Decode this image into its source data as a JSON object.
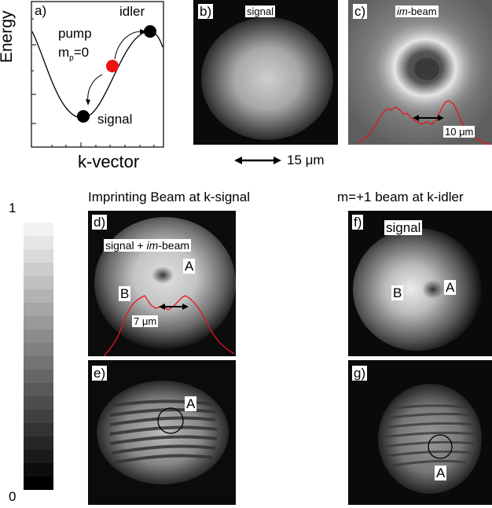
{
  "panel_a": {
    "letter": "a)",
    "y_axis_label": "Energy",
    "x_axis_label": "k-vector",
    "pump_label": "pump",
    "pump_m_label": "m",
    "pump_m_sub": "p",
    "pump_m_value": "=0",
    "idler_label": "idler",
    "signal_label": "signal"
  },
  "panel_b": {
    "letter": "b)",
    "label": "signal"
  },
  "panel_c": {
    "letter": "c)",
    "label_em": "im",
    "label_rest": "-beam",
    "scale_label": "10 μm"
  },
  "scale_bar_label": "15 μm",
  "heading_left": "Imprinting Beam at k-signal",
  "heading_right": "m=+1 beam at k-idler",
  "colorbar": {
    "max_label": "1",
    "min_label": "0"
  },
  "panel_d": {
    "letter": "d)",
    "label_pre": "signal + ",
    "label_em": "im",
    "label_post": "-beam",
    "point_a": "A",
    "point_b": "B",
    "scale_label": "7 μm"
  },
  "panel_e": {
    "letter": "e)",
    "point_a": "A"
  },
  "panel_f": {
    "letter": "f)",
    "label": "signal",
    "point_a": "A",
    "point_b": "B"
  },
  "panel_g": {
    "letter": "g)",
    "point_a": "A"
  },
  "colors": {
    "profile_line": "#e8141c",
    "pump_dot": "#ee1111",
    "dot": "#000000"
  }
}
